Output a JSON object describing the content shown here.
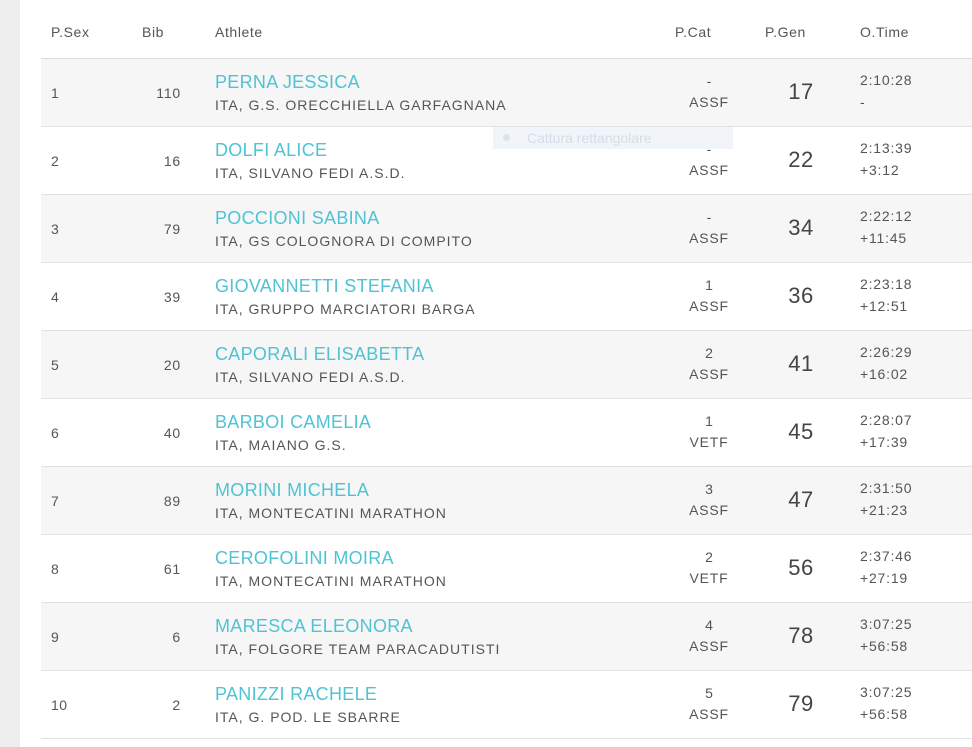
{
  "headers": {
    "psex": "P.Sex",
    "bib": "Bib",
    "athlete": "Athlete",
    "pcat": "P.Cat",
    "pgen": "P.Gen",
    "otime": "O.Time"
  },
  "overlay_text": "Cattura rettangolare",
  "rows": [
    {
      "psex": "1",
      "bib": "110",
      "name": "PERNA JESSICA",
      "club": "ITA, G.S. ORECCHIELLA GARFAGNANA",
      "pcat_pos": "-",
      "pcat": "ASSF",
      "pgen": "17",
      "time": "2:10:28",
      "gap": "-"
    },
    {
      "psex": "2",
      "bib": "16",
      "name": "DOLFI ALICE",
      "club": "ITA, SILVANO FEDI A.S.D.",
      "pcat_pos": "-",
      "pcat": "ASSF",
      "pgen": "22",
      "time": "2:13:39",
      "gap": "+3:12"
    },
    {
      "psex": "3",
      "bib": "79",
      "name": "POCCIONI SABINA",
      "club": "ITA, GS COLOGNORA DI COMPITO",
      "pcat_pos": "-",
      "pcat": "ASSF",
      "pgen": "34",
      "time": "2:22:12",
      "gap": "+11:45"
    },
    {
      "psex": "4",
      "bib": "39",
      "name": "GIOVANNETTI STEFANIA",
      "club": "ITA, GRUPPO MARCIATORI BARGA",
      "pcat_pos": "1",
      "pcat": "ASSF",
      "pgen": "36",
      "time": "2:23:18",
      "gap": "+12:51"
    },
    {
      "psex": "5",
      "bib": "20",
      "name": "CAPORALI ELISABETTA",
      "club": "ITA, SILVANO FEDI A.S.D.",
      "pcat_pos": "2",
      "pcat": "ASSF",
      "pgen": "41",
      "time": "2:26:29",
      "gap": "+16:02"
    },
    {
      "psex": "6",
      "bib": "40",
      "name": "BARBOI CAMELIA",
      "club": "ITA, MAIANO G.S.",
      "pcat_pos": "1",
      "pcat": "VETF",
      "pgen": "45",
      "time": "2:28:07",
      "gap": "+17:39"
    },
    {
      "psex": "7",
      "bib": "89",
      "name": "MORINI MICHELA",
      "club": "ITA, MONTECATINI MARATHON",
      "pcat_pos": "3",
      "pcat": "ASSF",
      "pgen": "47",
      "time": "2:31:50",
      "gap": "+21:23"
    },
    {
      "psex": "8",
      "bib": "61",
      "name": "CEROFOLINI MOIRA",
      "club": "ITA, MONTECATINI MARATHON",
      "pcat_pos": "2",
      "pcat": "VETF",
      "pgen": "56",
      "time": "2:37:46",
      "gap": "+27:19"
    },
    {
      "psex": "9",
      "bib": "6",
      "name": "MARESCA ELEONORA",
      "club": "ITA, FOLGORE TEAM PARACADUTISTI",
      "pcat_pos": "4",
      "pcat": "ASSF",
      "pgen": "78",
      "time": "3:07:25",
      "gap": "+56:58"
    },
    {
      "psex": "10",
      "bib": "2",
      "name": "PANIZZI RACHELE",
      "club": "ITA, G. POD. LE SBARRE",
      "pcat_pos": "5",
      "pcat": "ASSF",
      "pgen": "79",
      "time": "3:07:25",
      "gap": "+56:58"
    }
  ],
  "colors": {
    "athlete_link": "#4ec3d4",
    "text": "#555555",
    "row_alt": "#f6f6f6"
  }
}
